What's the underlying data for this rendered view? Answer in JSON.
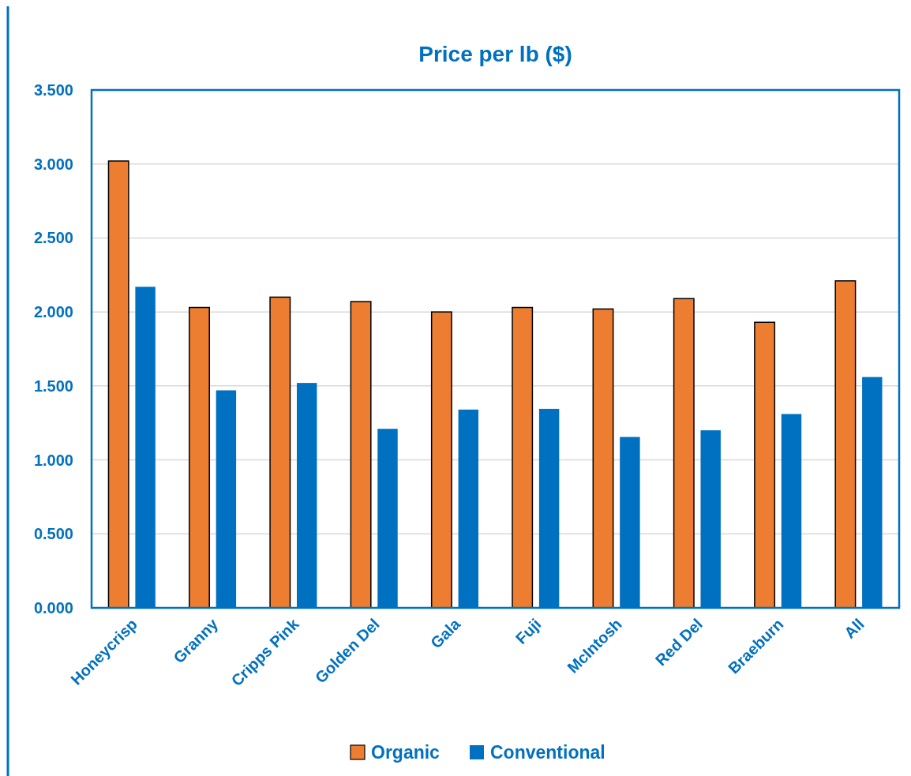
{
  "chart_data": {
    "type": "bar",
    "title": "Price per lb ($)",
    "categories": [
      "Honeycrisp",
      "Granny",
      "Cripps Pink",
      "Golden Del",
      "Gala",
      "Fuji",
      "McIntosh",
      "Red Del",
      "Braeburn",
      "All"
    ],
    "series": [
      {
        "name": "Organic",
        "color": "#ed7d31",
        "values": [
          3.02,
          2.03,
          2.1,
          2.07,
          2.0,
          2.03,
          2.02,
          2.09,
          1.93,
          2.21
        ]
      },
      {
        "name": "Conventional",
        "color": "#0070c0",
        "values": [
          2.17,
          1.47,
          1.52,
          1.21,
          1.34,
          1.345,
          1.155,
          1.2,
          1.31,
          1.56
        ]
      }
    ],
    "ylim": [
      0,
      3.5
    ],
    "yticks": [
      {
        "value": 0,
        "label": "0.000"
      },
      {
        "value": 0.5,
        "label": "0.500"
      },
      {
        "value": 1,
        "label": "1.000"
      },
      {
        "value": 1.5,
        "label": "1.500"
      },
      {
        "value": 2,
        "label": "2.000"
      },
      {
        "value": 2.5,
        "label": "2.500"
      },
      {
        "value": 3,
        "label": "3.000"
      },
      {
        "value": 3.5,
        "label": "3.500"
      }
    ],
    "grid": "y",
    "legend": "bottom"
  }
}
